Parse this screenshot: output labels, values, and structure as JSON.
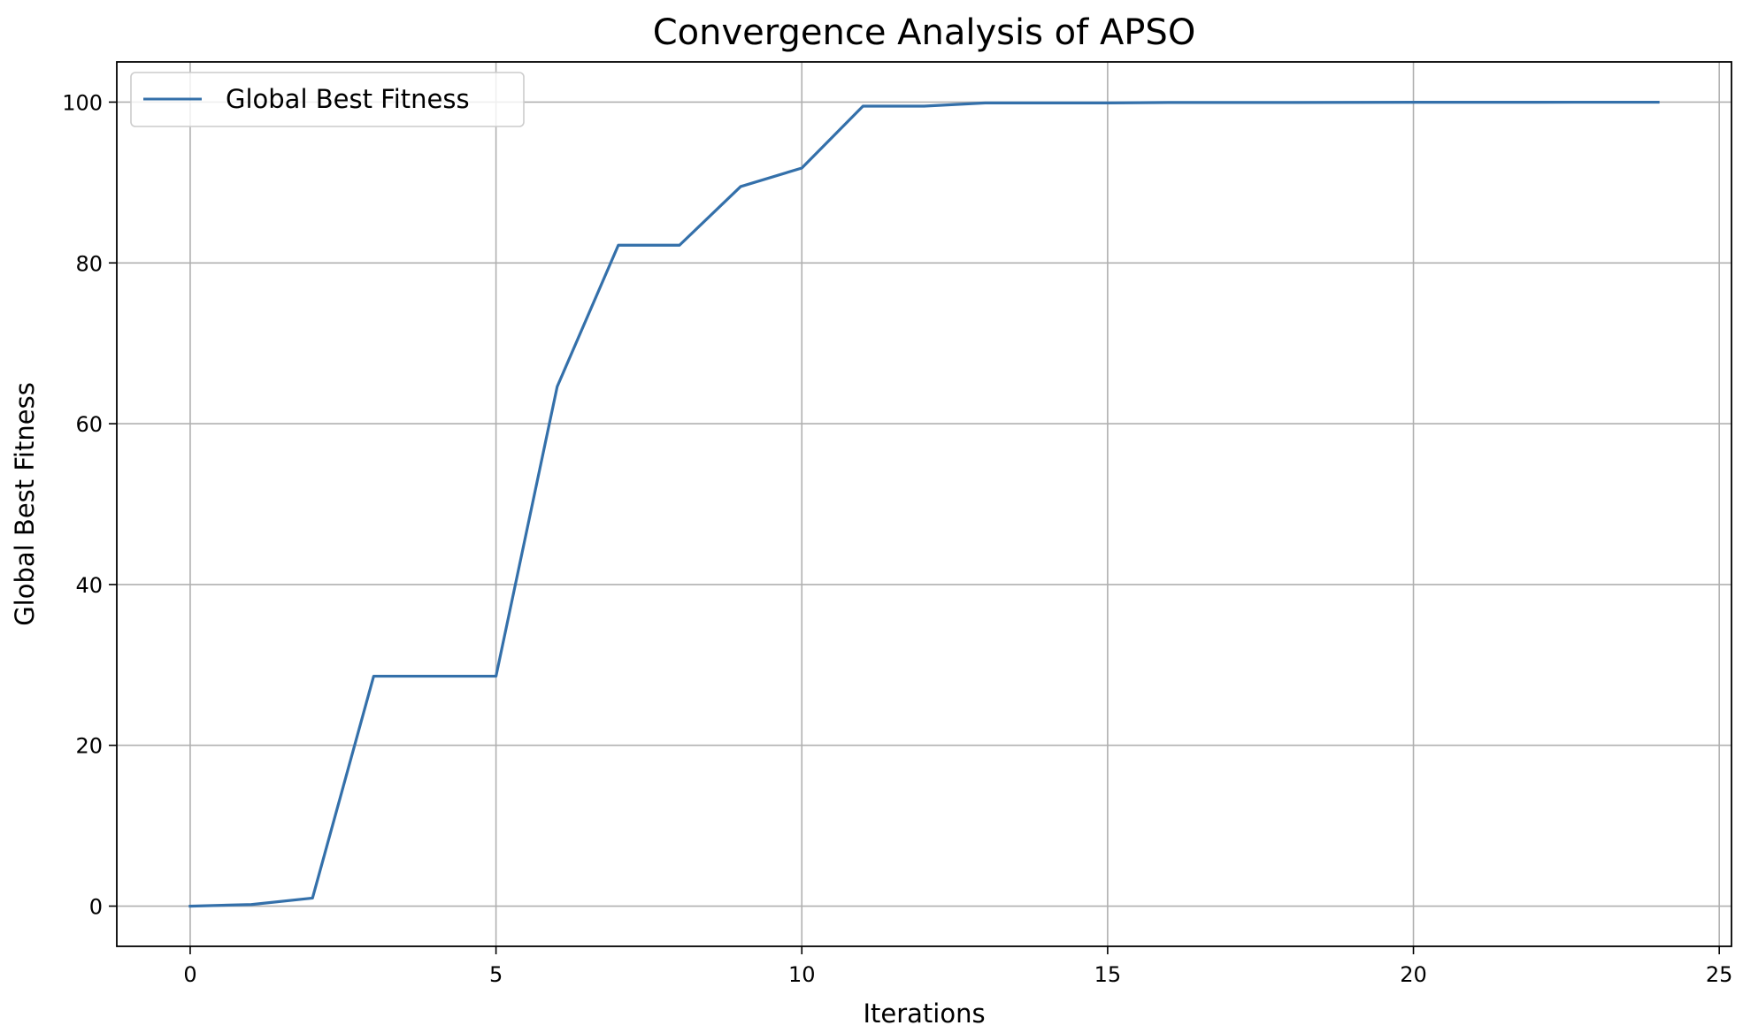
{
  "chart_data": {
    "type": "line",
    "title": "Convergence Analysis of APSO",
    "xlabel": "Iterations",
    "ylabel": "Global Best Fitness",
    "xlim": [
      -1.2,
      25.2
    ],
    "ylim": [
      -5,
      105
    ],
    "xticks": [
      0,
      5,
      10,
      15,
      20,
      25
    ],
    "yticks": [
      0,
      20,
      40,
      60,
      80,
      100
    ],
    "grid": true,
    "legend_position": "upper-left",
    "series": [
      {
        "name": "Global Best Fitness",
        "color": "#3470aa",
        "x": [
          0,
          1,
          2,
          3,
          4,
          5,
          6,
          7,
          8,
          9,
          10,
          11,
          12,
          13,
          14,
          15,
          16,
          17,
          18,
          19,
          20,
          21,
          22,
          23,
          24
        ],
        "y": [
          0.0,
          0.2,
          1.0,
          28.6,
          28.6,
          28.6,
          64.6,
          82.2,
          82.2,
          89.5,
          91.8,
          99.5,
          99.5,
          99.9,
          99.9,
          99.9,
          99.95,
          99.95,
          99.95,
          99.97,
          99.98,
          99.98,
          99.98,
          99.99,
          99.99
        ]
      }
    ]
  }
}
